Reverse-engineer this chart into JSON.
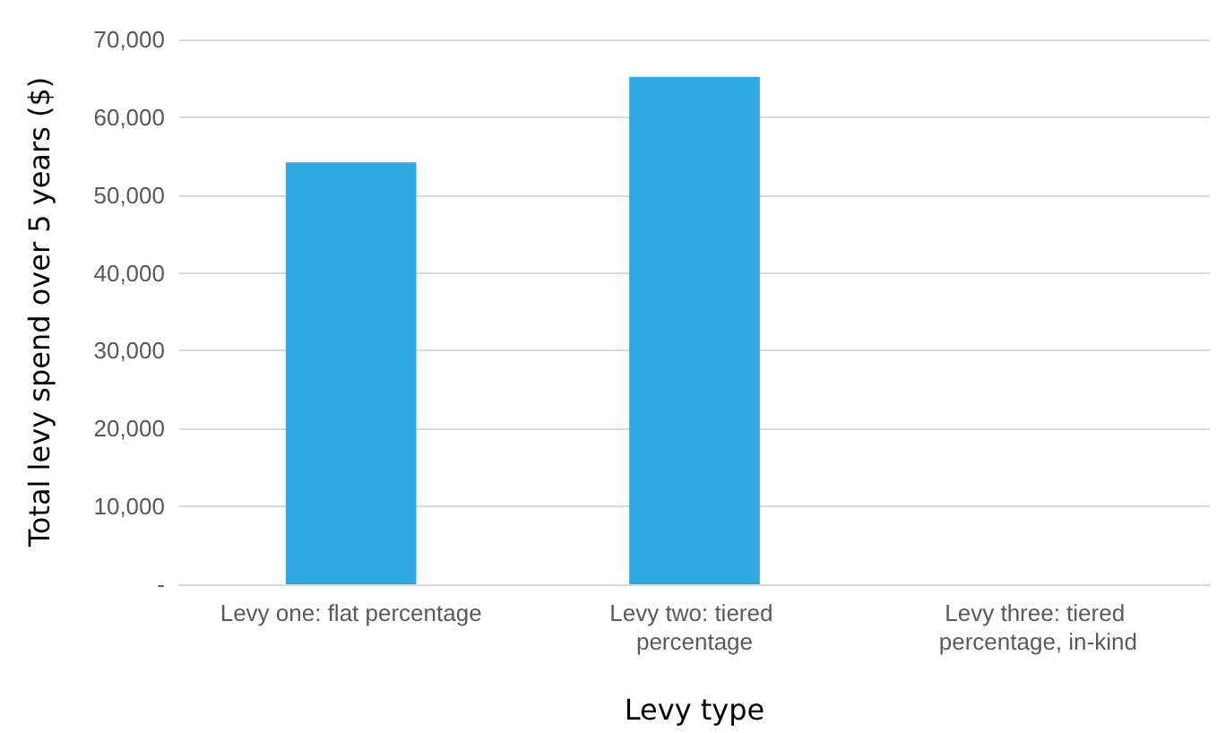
{
  "chart_data": {
    "type": "bar",
    "xlabel": "Levy type",
    "ylabel": "Total levy spend over 5 years ($)",
    "categories": [
      "Levy one: flat percentage",
      "Levy two: tiered percentage",
      "Levy three: tiered percentage, in-kind"
    ],
    "values": [
      54200,
      65200,
      0
    ],
    "color": "#2ea8e0",
    "ylim": [
      0,
      70000
    ],
    "yticks": [
      {
        "value": 0,
        "label": "-"
      },
      {
        "value": 10000,
        "label": "10,000"
      },
      {
        "value": 20000,
        "label": "20,000"
      },
      {
        "value": 30000,
        "label": "30,000"
      },
      {
        "value": 40000,
        "label": "40,000"
      },
      {
        "value": 50000,
        "label": "50,000"
      },
      {
        "value": 60000,
        "label": "60,000"
      },
      {
        "value": 70000,
        "label": "70,000"
      }
    ],
    "grid": "y"
  }
}
